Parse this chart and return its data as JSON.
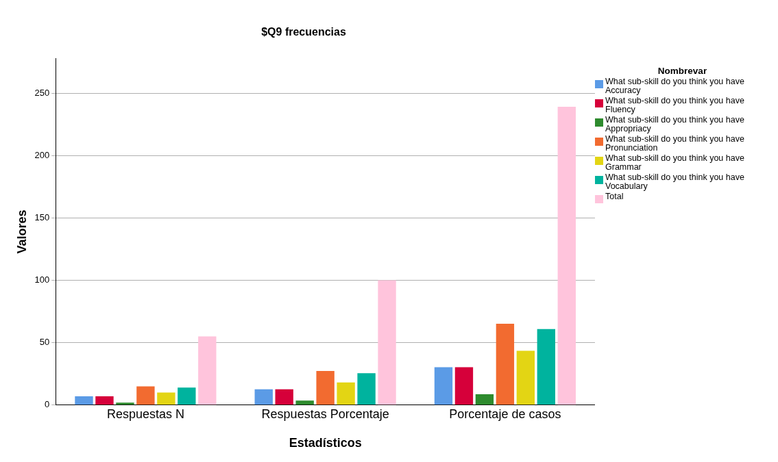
{
  "chart_data": {
    "type": "bar",
    "title": "$Q9 frecuencias",
    "xlabel": "Estadísticos",
    "ylabel": "Valores",
    "legend_title": "Nombrevar",
    "categories": [
      "Respuestas N",
      "Respuestas Porcentaje",
      "Porcentaje de casos"
    ],
    "series": [
      {
        "name": "What sub-skill do you think you have Accuracy",
        "color": "#5b9be6",
        "values": [
          7,
          12.7,
          30.4
        ]
      },
      {
        "name": "What sub-skill do you think you have Fluency",
        "color": "#d6003a",
        "values": [
          7,
          12.7,
          30.4
        ]
      },
      {
        "name": "What sub-skill do you think you have Appropriacy",
        "color": "#2e8b2e",
        "values": [
          2,
          3.6,
          8.7
        ]
      },
      {
        "name": "What sub-skill do you think you have Pronunciation",
        "color": "#f26b30",
        "values": [
          15,
          27.3,
          65.2
        ]
      },
      {
        "name": "What sub-skill do you think you have Grammar",
        "color": "#e3d514",
        "values": [
          10,
          18.2,
          43.5
        ]
      },
      {
        "name": "What sub-skill do you think you have Vocabulary",
        "color": "#00b39e",
        "values": [
          14,
          25.5,
          60.9
        ]
      },
      {
        "name": "Total",
        "color": "#ffc4dc",
        "values": [
          55,
          100,
          239.1
        ]
      }
    ],
    "ylim": [
      0,
      278
    ],
    "yticks": [
      0,
      50,
      100,
      150,
      200,
      250
    ],
    "grid": "y",
    "legend": "right"
  }
}
